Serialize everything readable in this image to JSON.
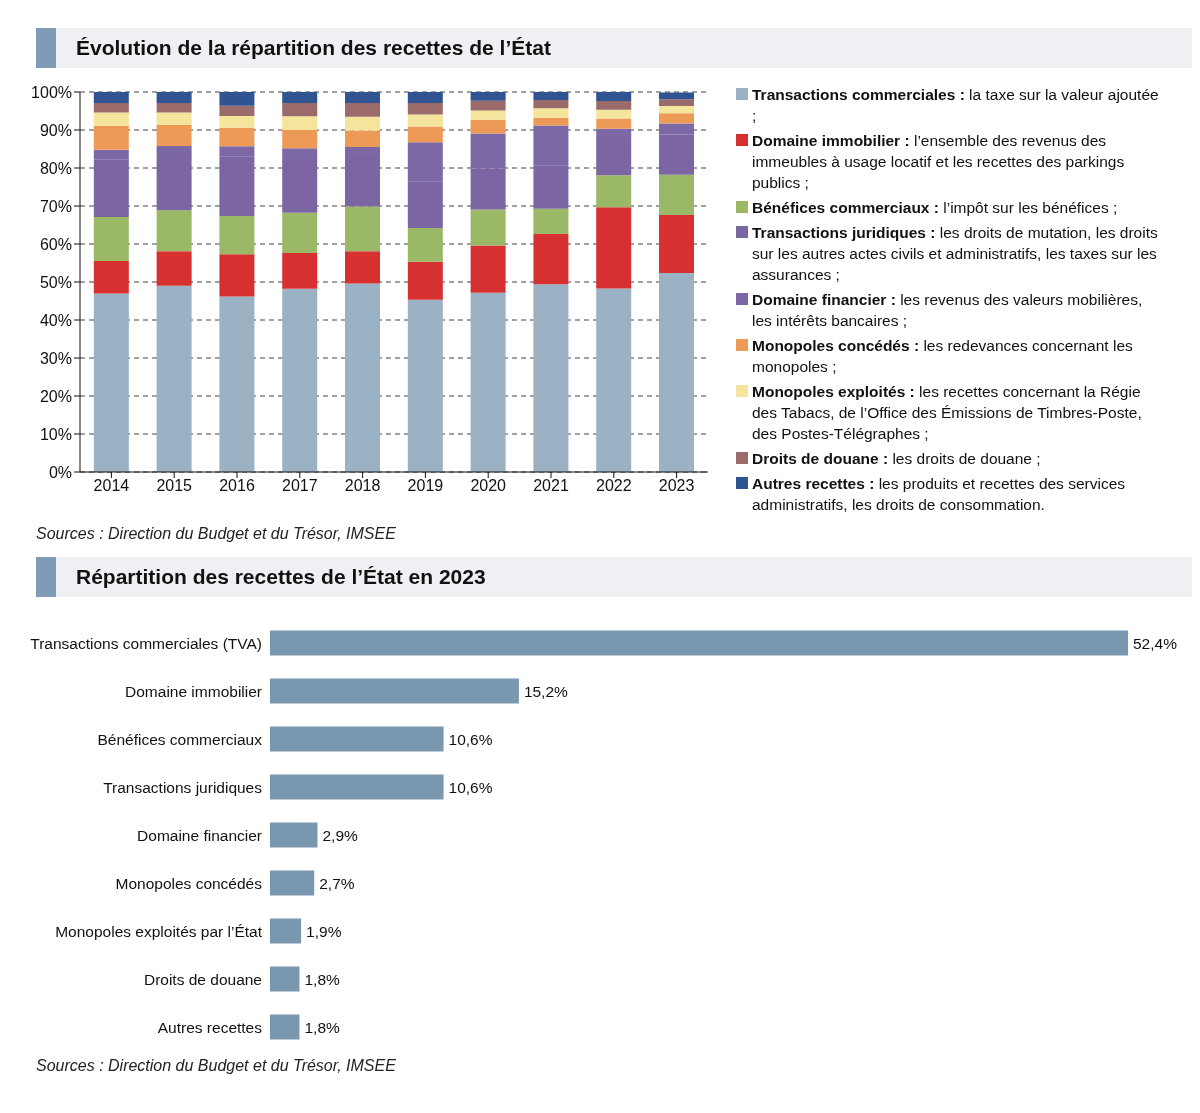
{
  "chart_data": [
    {
      "type": "bar",
      "title": "Évolution de la répartition des recettes de l’État",
      "stacked": true,
      "legend": "right",
      "grid": "y",
      "categories": [
        "2014",
        "2015",
        "2016",
        "2017",
        "2018",
        "2019",
        "2020",
        "2021",
        "2022",
        "2023"
      ],
      "ylim": [
        0,
        100
      ],
      "yticks": [
        {
          "value": 0,
          "label": "0%"
        },
        {
          "value": 10,
          "label": "10%"
        },
        {
          "value": 20,
          "label": "20%"
        },
        {
          "value": 30,
          "label": "30%"
        },
        {
          "value": 40,
          "label": "40%"
        },
        {
          "value": 50,
          "label": "50%"
        },
        {
          "value": 60,
          "label": "60%"
        },
        {
          "value": 70,
          "label": "70%"
        },
        {
          "value": 80,
          "label": "80%"
        },
        {
          "value": 90,
          "label": "90%"
        },
        {
          "value": 100,
          "label": "100%"
        }
      ],
      "series": [
        {
          "name": "Transactions commerciales : la taxe sur la valeur ajoutée ;",
          "color": "#9bb1c4",
          "values": [
            47.0,
            49.0,
            46.2,
            48.2,
            49.6,
            45.3,
            47.2,
            49.4,
            48.3,
            52.4
          ]
        },
        {
          "name": "Domaine immobilier : l’ensemble des revenus des immeubles à usage locatif et les recettes des parkings publics ;",
          "color": "#d63031",
          "values": [
            8.5,
            9.1,
            11.1,
            9.4,
            8.5,
            10.0,
            12.4,
            13.2,
            21.4,
            15.2
          ]
        },
        {
          "name": "Bénéfices commerciaux : l’impôt sur les bénéfices ;",
          "color": "#9bb866",
          "values": [
            11.6,
            10.8,
            10.1,
            10.6,
            11.8,
            8.9,
            9.5,
            6.7,
            8.4,
            10.6
          ]
        },
        {
          "name": "Transactions juridiques : les droits de mutation, les droits sur les autres actes civils et administratifs, les taxes sur les assurances ;",
          "color": "#7b66a3",
          "values": [
            15.2,
            14.8,
            15.7,
            13.9,
            13.5,
            12.3,
            10.8,
            11.3,
            9.8,
            10.6
          ]
        },
        {
          "name": "Domaine financier : les revenus des valeurs mobilières, les intérêts bancaires ;",
          "color": "#7d68a6",
          "values": [
            2.5,
            2.1,
            2.6,
            3.1,
            2.1,
            10.3,
            9.2,
            10.6,
            2.4,
            2.9
          ]
        },
        {
          "name": "Monopoles concédés : les redevances concernant les monopoles ;",
          "color": "#ee9a57",
          "values": [
            6.3,
            5.5,
            4.9,
            4.8,
            4.4,
            4.1,
            3.6,
            2.0,
            2.7,
            2.7
          ]
        },
        {
          "name": "Monopoles exploités : les recettes concernant la Régie des Tabacs, de l’Office des Émissions de Timbres-Poste, des Postes-Télégraphes ;",
          "color": "#f5e49c",
          "values": [
            3.5,
            3.3,
            3.1,
            3.6,
            3.6,
            3.2,
            2.4,
            2.5,
            2.3,
            1.9
          ]
        },
        {
          "name": "Droits de douane : les droits de douane ;",
          "color": "#9b6b6b",
          "values": [
            2.5,
            2.5,
            2.7,
            3.5,
            3.6,
            3.0,
            2.6,
            2.2,
            2.3,
            1.8
          ]
        },
        {
          "name": "Autres recettes : les produits et recettes des services administratifs, les droits de consommation.",
          "color": "#2f5491",
          "values": [
            2.9,
            2.9,
            3.6,
            2.9,
            2.9,
            2.9,
            2.3,
            2.1,
            2.4,
            1.8
          ]
        }
      ],
      "annotations": [
        "Sources : Direction du Budget et du Trésor, IMSEE"
      ]
    },
    {
      "type": "bar",
      "title": "Répartition des recettes de l’État en 2023",
      "orientation": "horizontal",
      "tick_labels": "y",
      "color": "#7a97b0",
      "categories": [
        "Transactions commerciales (TVA)",
        "Domaine immobilier",
        "Bénéfices commerciaux",
        "Transactions juridiques",
        "Domaine financier",
        "Monopoles concédés",
        "Monopoles exploités par l’État",
        "Droits de douane",
        "Autres recettes"
      ],
      "values": [
        52.4,
        15.2,
        10.6,
        10.6,
        2.9,
        2.7,
        1.9,
        1.8,
        1.8
      ],
      "value_labels": [
        "52,4%",
        "15,2%",
        "10,6%",
        "10,6%",
        "2,9%",
        "2,7%",
        "1,9%",
        "1,8%",
        "1,8%"
      ],
      "annotations": [
        "Sources : Direction du Budget et du Trésor, IMSEE"
      ]
    }
  ]
}
